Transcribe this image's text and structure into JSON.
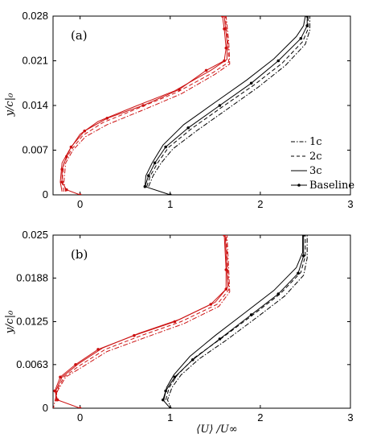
{
  "colors": {
    "red": "#cc1111",
    "black": "#000000",
    "frame": "#000000"
  },
  "xlabel": "⟨U⟩ /U∞",
  "ylabel": "y/c|₀",
  "legend": {
    "placement": "lower-right of panel (a)",
    "entries": [
      {
        "label": "1c",
        "style": "dash-dot"
      },
      {
        "label": "2c",
        "style": "dashed"
      },
      {
        "label": "3c",
        "style": "solid"
      },
      {
        "label": "Baseline",
        "style": "solid-with-markers"
      }
    ]
  },
  "chart_data": [
    {
      "type": "line",
      "panel_label": "(a)",
      "xlim": [
        -0.3,
        3
      ],
      "ylim": [
        0,
        0.028
      ],
      "xticks": [
        0,
        1,
        2,
        3
      ],
      "yticks": [
        0,
        0.007,
        0.014,
        0.021,
        0.028
      ],
      "ytick_labels": [
        "0",
        "0.007",
        "0.014",
        "0.021",
        "0.028"
      ],
      "series": [
        {
          "group": "red",
          "color": "#cc1111",
          "style": "solid-with-markers",
          "x": [
            0,
            -0.15,
            -0.2,
            -0.2,
            -0.15,
            -0.1,
            0.05,
            0.3,
            0.7,
            1.1,
            1.4,
            1.6,
            1.62,
            1.6,
            1.58
          ],
          "y": [
            0,
            0.0008,
            0.002,
            0.004,
            0.006,
            0.0075,
            0.01,
            0.012,
            0.014,
            0.0165,
            0.0195,
            0.021,
            0.023,
            0.026,
            0.028
          ]
        },
        {
          "group": "red",
          "color": "#cc1111",
          "style": "solid",
          "x": [
            -0.2,
            -0.22,
            -0.2,
            -0.12,
            0.0,
            0.2,
            0.6,
            1.05,
            1.45,
            1.63,
            1.63,
            1.6
          ],
          "y": [
            0.0005,
            0.002,
            0.005,
            0.007,
            0.0095,
            0.0115,
            0.0138,
            0.0163,
            0.0195,
            0.0212,
            0.024,
            0.028
          ]
        },
        {
          "group": "red",
          "color": "#cc1111",
          "style": "dashed",
          "x": [
            -0.18,
            -0.2,
            -0.18,
            -0.1,
            0.03,
            0.25,
            0.65,
            1.08,
            1.48,
            1.65,
            1.64,
            1.61
          ],
          "y": [
            0.0005,
            0.002,
            0.005,
            0.007,
            0.0093,
            0.0113,
            0.0136,
            0.0161,
            0.0192,
            0.0208,
            0.024,
            0.028
          ]
        },
        {
          "group": "red",
          "color": "#cc1111",
          "style": "dash-dot",
          "x": [
            -0.16,
            -0.18,
            -0.16,
            -0.08,
            0.06,
            0.3,
            0.7,
            1.12,
            1.5,
            1.66,
            1.65,
            1.62
          ],
          "y": [
            0.0005,
            0.002,
            0.005,
            0.007,
            0.0091,
            0.011,
            0.0133,
            0.0158,
            0.0189,
            0.0205,
            0.024,
            0.028
          ]
        },
        {
          "group": "black",
          "color": "#000000",
          "style": "solid-with-markers",
          "x": [
            1,
            0.72,
            0.76,
            0.83,
            0.95,
            1.2,
            1.55,
            1.9,
            2.2,
            2.45,
            2.52,
            2.52
          ],
          "y": [
            0,
            0.0013,
            0.003,
            0.005,
            0.0075,
            0.0105,
            0.014,
            0.0175,
            0.021,
            0.0245,
            0.0265,
            0.028
          ]
        },
        {
          "group": "black",
          "color": "#000000",
          "style": "solid",
          "x": [
            0.72,
            0.73,
            0.8,
            0.92,
            1.15,
            1.5,
            1.85,
            2.15,
            2.4,
            2.48,
            2.5
          ],
          "y": [
            0.0013,
            0.003,
            0.005,
            0.0078,
            0.011,
            0.0145,
            0.018,
            0.0213,
            0.0248,
            0.0265,
            0.028
          ]
        },
        {
          "group": "black",
          "color": "#000000",
          "style": "dashed",
          "x": [
            0.74,
            0.78,
            0.86,
            0.98,
            1.24,
            1.58,
            1.93,
            2.24,
            2.47,
            2.53,
            2.53
          ],
          "y": [
            0.0013,
            0.003,
            0.005,
            0.0074,
            0.0104,
            0.0138,
            0.0172,
            0.0206,
            0.024,
            0.026,
            0.028
          ]
        },
        {
          "group": "black",
          "color": "#000000",
          "style": "dash-dot",
          "x": [
            0.76,
            0.81,
            0.9,
            1.03,
            1.3,
            1.64,
            1.98,
            2.28,
            2.5,
            2.55,
            2.55
          ],
          "y": [
            0.0013,
            0.003,
            0.005,
            0.0072,
            0.0101,
            0.0135,
            0.0169,
            0.0203,
            0.0236,
            0.0258,
            0.028
          ]
        }
      ]
    },
    {
      "type": "line",
      "panel_label": "(b)",
      "xlim": [
        -0.3,
        3
      ],
      "ylim": [
        0,
        0.025
      ],
      "xticks": [
        0,
        1,
        2,
        3
      ],
      "yticks": [
        0,
        0.0063,
        0.0125,
        0.0188,
        0.025
      ],
      "ytick_labels": [
        "0",
        "0.0063",
        "0.0125",
        "0.0188",
        "0.025"
      ],
      "series": [
        {
          "group": "red",
          "color": "#cc1111",
          "style": "solid-with-markers",
          "x": [
            0,
            -0.25,
            -0.28,
            -0.22,
            -0.05,
            0.2,
            0.6,
            1.05,
            1.45,
            1.62,
            1.62,
            1.6
          ],
          "y": [
            0,
            0.0012,
            0.0025,
            0.0045,
            0.0063,
            0.0085,
            0.0105,
            0.0125,
            0.015,
            0.0172,
            0.02,
            0.025
          ]
        },
        {
          "group": "red",
          "color": "#cc1111",
          "style": "solid",
          "x": [
            -0.27,
            -0.27,
            -0.2,
            -0.02,
            0.25,
            0.65,
            1.1,
            1.5,
            1.64,
            1.63,
            1.61
          ],
          "y": [
            0.001,
            0.0025,
            0.0045,
            0.0064,
            0.0087,
            0.0108,
            0.0128,
            0.0153,
            0.0175,
            0.02,
            0.025
          ]
        },
        {
          "group": "red",
          "color": "#cc1111",
          "style": "dashed",
          "x": [
            -0.26,
            -0.26,
            -0.18,
            0.0,
            0.28,
            0.68,
            1.12,
            1.52,
            1.65,
            1.64,
            1.62
          ],
          "y": [
            0.001,
            0.0025,
            0.0045,
            0.0062,
            0.0085,
            0.0105,
            0.0125,
            0.015,
            0.0171,
            0.02,
            0.025
          ]
        },
        {
          "group": "red",
          "color": "#cc1111",
          "style": "dash-dot",
          "x": [
            -0.3,
            -0.28,
            -0.25,
            -0.16,
            0.03,
            0.3,
            0.72,
            1.15,
            1.54,
            1.66,
            1.65,
            1.63
          ],
          "y": [
            -0.0003,
            0.001,
            0.0025,
            0.0045,
            0.006,
            0.0082,
            0.0102,
            0.0122,
            0.0147,
            0.0168,
            0.02,
            0.025
          ]
        },
        {
          "group": "black",
          "color": "#000000",
          "style": "solid-with-markers",
          "x": [
            1,
            0.92,
            0.95,
            1.05,
            1.25,
            1.55,
            1.9,
            2.2,
            2.42,
            2.48,
            2.48
          ],
          "y": [
            0,
            0.0012,
            0.0025,
            0.0045,
            0.007,
            0.01,
            0.0135,
            0.0165,
            0.0195,
            0.022,
            0.025
          ]
        },
        {
          "group": "black",
          "color": "#000000",
          "style": "solid",
          "x": [
            0.93,
            0.96,
            1.04,
            1.22,
            1.5,
            1.85,
            2.15,
            2.4,
            2.47,
            2.47
          ],
          "y": [
            0.0012,
            0.003,
            0.0048,
            0.0075,
            0.0105,
            0.014,
            0.017,
            0.0203,
            0.0225,
            0.025
          ]
        },
        {
          "group": "black",
          "color": "#000000",
          "style": "dashed",
          "x": [
            0.95,
            0.99,
            1.08,
            1.27,
            1.58,
            1.92,
            2.22,
            2.45,
            2.5,
            2.5
          ],
          "y": [
            0.0012,
            0.003,
            0.0048,
            0.0073,
            0.0102,
            0.0135,
            0.0165,
            0.0196,
            0.022,
            0.025
          ]
        },
        {
          "group": "black",
          "color": "#000000",
          "style": "dash-dot",
          "x": [
            1.02,
            0.97,
            1.02,
            1.12,
            1.32,
            1.63,
            1.97,
            2.27,
            2.48,
            2.52,
            2.52
          ],
          "y": [
            -0.0003,
            0.0012,
            0.003,
            0.0048,
            0.0071,
            0.0099,
            0.0132,
            0.0162,
            0.0192,
            0.0217,
            0.025
          ]
        }
      ]
    }
  ]
}
